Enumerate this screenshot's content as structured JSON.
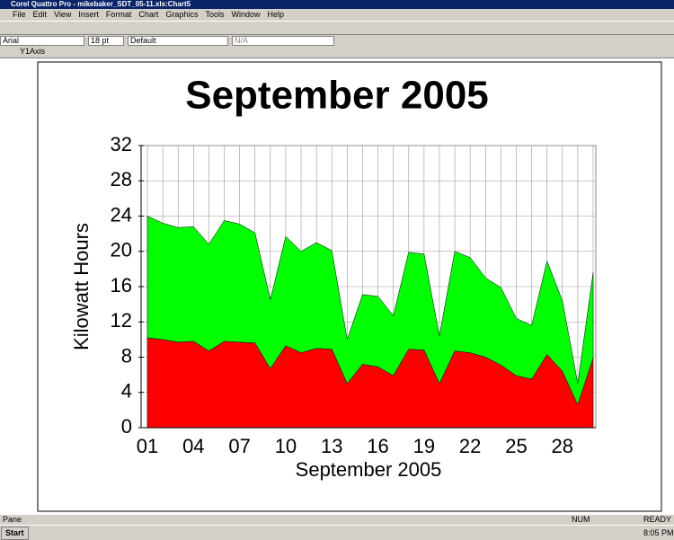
{
  "window": {
    "title": "Corel Quattro Pro - mikebaker_SDT_05-11.xls:Chart5",
    "menu": [
      "File",
      "Edit",
      "View",
      "Insert",
      "Format",
      "Chart",
      "Graphics",
      "Tools",
      "Window",
      "Help"
    ]
  },
  "property_bar": {
    "font": "Arial",
    "size": "18 pt",
    "style": "Default",
    "option": "N/A"
  },
  "selector": "Y1Axis",
  "status": {
    "left": "Pane",
    "num": "NUM",
    "ready": "READY"
  },
  "taskbar": {
    "start": "Start",
    "time": "8:05 PM"
  },
  "chart_data": {
    "type": "area",
    "stacked": true,
    "title": "September 2005",
    "x_label": "September 2005",
    "y_label": "Kilowatt Hours",
    "categories": [
      "01",
      null,
      null,
      "04",
      null,
      null,
      "07",
      null,
      null,
      "10",
      null,
      null,
      "13",
      null,
      null,
      "16",
      null,
      null,
      "19",
      null,
      null,
      "22",
      null,
      null,
      "25",
      null,
      null,
      "28",
      null,
      null
    ],
    "series": [
      {
        "color": "#ff0000",
        "values": [
          10.2,
          10.0,
          9.7,
          9.8,
          8.7,
          9.8,
          9.7,
          9.6,
          6.7,
          9.3,
          8.5,
          9.0,
          8.9,
          5.0,
          7.2,
          6.9,
          5.9,
          8.9,
          8.8,
          5.0,
          8.7,
          8.5,
          8.0,
          7.1,
          5.9,
          5.5,
          8.3,
          6.4,
          2.6,
          7.9
        ]
      },
      {
        "color": "#00ff00",
        "values": [
          13.8,
          13.2,
          13.0,
          13.0,
          12.1,
          13.7,
          13.4,
          12.5,
          7.8,
          12.4,
          11.5,
          12.0,
          11.2,
          5.0,
          7.9,
          8.0,
          6.8,
          11.0,
          10.9,
          5.4,
          11.3,
          10.8,
          9.0,
          8.8,
          6.5,
          6.1,
          10.6,
          8.0,
          2.4,
          9.7
        ]
      }
    ],
    "ylim": [
      0,
      32
    ],
    "yticks": [
      0,
      4,
      8,
      12,
      16,
      20,
      24,
      28,
      32
    ],
    "grid": true
  }
}
